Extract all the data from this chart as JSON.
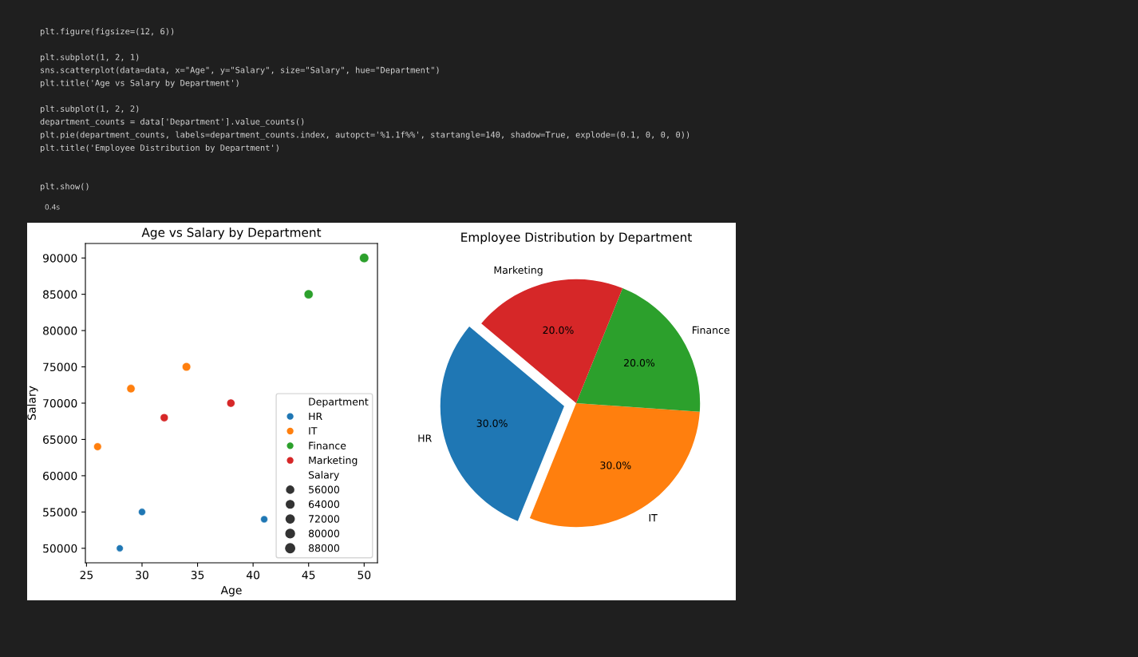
{
  "chart_data": [
    {
      "type": "bubble",
      "title": "Age vs Salary by Department",
      "xlabel": "Age",
      "ylabel": "Salary",
      "legend_title": "Department",
      "legend": "bottom right",
      "grid": false,
      "annotations": [
        "plt.figure(figsize=(12, 6))\n\nplt.subplot(1, 2, 1)\nsns.scatterplot(data=data, x=\"Age\", y=\"Salary\", size=\"Salary\", hue=\"Department\")\nplt.title('Age vs Salary by Department')\n\nplt.subplot(1, 2, 2)\ndepartment_counts = data['Department'].value_counts()\nplt.pie(department_counts, labels=department_counts.index, autopct='%1.1f%%', startangle=140, shadow=True, explode=(0.1, 0, 0, 0))\nplt.title('Employee Distribution by Department')\n\n\nplt.show()",
        "0.4s"
      ],
      "xlim": [
        24.9,
        51.2
      ],
      "ylim": [
        48000,
        92000
      ],
      "xticks": [
        25,
        30,
        35,
        40,
        45,
        50
      ],
      "yticks": [
        50000,
        55000,
        60000,
        65000,
        70000,
        75000,
        80000,
        85000,
        90000
      ],
      "size_legend": [
        56000,
        64000,
        72000,
        80000,
        88000
      ],
      "series": [
        {
          "name": "HR",
          "color": "#1f77b4",
          "x": [
            28,
            30,
            41
          ],
          "values": [
            50000,
            55000,
            54000
          ],
          "sizes": [
            50000,
            55000,
            54000
          ]
        },
        {
          "name": "IT",
          "color": "#ff7f0e",
          "x": [
            26,
            29,
            34
          ],
          "values": [
            64000,
            72000,
            75000
          ],
          "sizes": [
            64000,
            72000,
            75000
          ]
        },
        {
          "name": "Finance",
          "color": "#2ca02c",
          "x": [
            45,
            50
          ],
          "values": [
            85000,
            90000
          ],
          "sizes": [
            85000,
            90000
          ]
        },
        {
          "name": "Marketing",
          "color": "#d62728",
          "x": [
            32,
            38
          ],
          "values": [
            68000,
            70000
          ],
          "sizes": [
            68000,
            70000
          ]
        }
      ]
    },
    {
      "type": "pie",
      "title": "Employee Distribution by Department",
      "categories": [
        "HR",
        "IT",
        "Finance",
        "Marketing"
      ],
      "values": [
        30,
        30,
        20,
        20
      ],
      "value_labels": [
        "30.0%",
        "30.0%",
        "20.0%",
        "20.0%"
      ],
      "colors": [
        "#1f77b4",
        "#ff7f0e",
        "#2ca02c",
        "#d62728"
      ]
    }
  ]
}
